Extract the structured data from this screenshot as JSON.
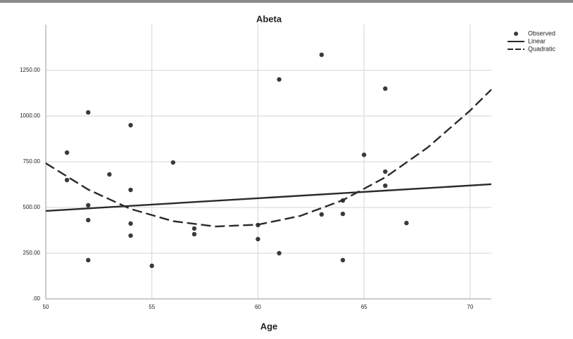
{
  "chart_data": {
    "type": "scatter",
    "title": "Abeta",
    "x_label": "Age",
    "xlim": [
      50,
      71
    ],
    "xticks": [
      50,
      55,
      60,
      65,
      70
    ],
    "ylim": [
      0,
      1500
    ],
    "yticks": [
      {
        "value": 0,
        "label": ".00"
      },
      {
        "value": 250,
        "label": "250.00"
      },
      {
        "value": 500,
        "label": "500.00"
      },
      {
        "value": 750,
        "label": "750.00"
      },
      {
        "value": 1000,
        "label": "1000.00"
      },
      {
        "value": 1250,
        "label": "1250.00"
      }
    ],
    "grid": true,
    "legend": "right",
    "series": [
      {
        "name": "Observed",
        "color": "#3a3a3a",
        "style": "markers",
        "x": [
          51,
          51,
          52,
          52,
          52,
          52,
          53,
          54,
          54,
          54,
          54,
          55,
          56,
          57,
          57,
          60,
          60,
          61,
          61,
          63,
          63,
          64,
          64,
          64,
          65,
          66,
          66,
          66,
          67
        ],
        "values": [
          800,
          650,
          1020,
          512,
          431,
          212,
          681,
          950,
          596,
          412,
          346,
          181,
          746,
          385,
          354,
          404,
          327,
          1200,
          250,
          1335,
          462,
          538,
          465,
          212,
          788,
          1150,
          696,
          619,
          415
        ]
      },
      {
        "name": "Linear",
        "color": "#2a2a2a",
        "style": "solid",
        "x": [
          50,
          71
        ],
        "values": [
          481,
          627
        ]
      },
      {
        "name": "Quadratic",
        "color": "#2a2a2a",
        "style": "dashed",
        "x": [
          50,
          52,
          54,
          56,
          58,
          60,
          62,
          64,
          66,
          68,
          70,
          71
        ],
        "values": [
          742,
          598,
          492,
          425,
          396,
          406,
          454,
          540,
          665,
          828,
          1030,
          1145
        ]
      }
    ]
  }
}
